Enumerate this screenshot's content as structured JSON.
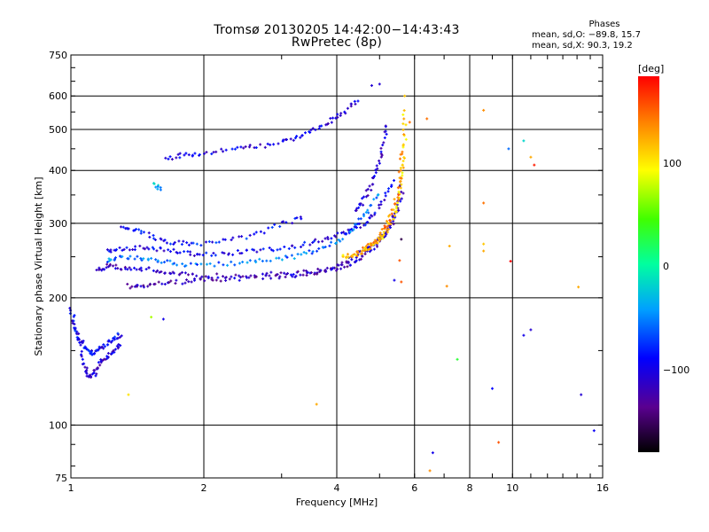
{
  "title": {
    "line1": "Tromsø 20130205 14:42:00−14:43:43",
    "line2": "RwPretec (8p)"
  },
  "phase_stats": {
    "heading": "Phases",
    "o_line": "mean, sd,O: −89.8, 15.7",
    "x_line": "mean, sd,X:  90.3, 19.2"
  },
  "colorbar": {
    "unit_label": "[deg]",
    "ticks": [
      "100",
      "0",
      "−100"
    ],
    "range": [
      -180,
      180
    ]
  },
  "chart_data": {
    "type": "scatter",
    "title": "Tromsø 20130205 14:42:00−14:43:43",
    "subtitle": "RwPretec (8p)",
    "xlabel": "Frequency [MHz]",
    "ylabel": "Stationary phase Virtual Height [km]",
    "xscale": "log",
    "yscale": "log",
    "xlim": [
      1,
      16
    ],
    "ylim": [
      75,
      750
    ],
    "xticks": [
      1,
      2,
      4,
      6,
      8,
      10,
      16
    ],
    "xtick_labels": [
      "1",
      "2",
      "4",
      "6",
      "8",
      "10",
      "16"
    ],
    "yticks": [
      75,
      100,
      200,
      300,
      400,
      500,
      600,
      750
    ],
    "ytick_labels": [
      "75",
      "100",
      "200",
      "300",
      "400",
      "500",
      "600",
      "750"
    ],
    "grid": true,
    "color_metric": "phase [deg]",
    "traces": [
      {
        "x": [
          1.02,
          1.05,
          1.08,
          1.1,
          1.13,
          1.16,
          1.2,
          1.25,
          1.3
        ],
        "y": [
          178,
          150,
          135,
          130,
          132,
          140,
          145,
          150,
          155
        ],
        "phase": -110
      },
      {
        "x": [
          1.0,
          1.02,
          1.05,
          1.08,
          1.12,
          1.15,
          1.2,
          1.25,
          1.3
        ],
        "y": [
          190,
          170,
          158,
          152,
          148,
          150,
          155,
          160,
          165
        ],
        "phase": -95
      },
      {
        "x": [
          1.15,
          1.2,
          1.3,
          1.4,
          1.55,
          1.7,
          1.9,
          2.2,
          2.6,
          3.0,
          3.4,
          3.8,
          4.1,
          4.4,
          4.7,
          5.0,
          5.3,
          5.5,
          5.65
        ],
        "y": [
          230,
          238,
          236,
          235,
          232,
          228,
          226,
          225,
          226,
          228,
          230,
          233,
          240,
          250,
          262,
          278,
          295,
          320,
          360
        ],
        "phase": -115
      },
      {
        "x": [
          1.35,
          1.45,
          1.6,
          1.8,
          2.0,
          2.3,
          2.7,
          3.1,
          3.5,
          3.9,
          4.3,
          4.6,
          4.9,
          5.2,
          5.45,
          5.6
        ],
        "y": [
          213,
          214,
          216,
          218,
          220,
          222,
          223,
          225,
          228,
          233,
          240,
          252,
          265,
          285,
          320,
          380
        ],
        "phase": -120
      },
      {
        "x": [
          1.2,
          1.3,
          1.45,
          1.6,
          1.8,
          2.0,
          2.3,
          2.6,
          3.0,
          3.4,
          3.8,
          4.2,
          4.5,
          4.8,
          5.1,
          5.4
        ],
        "y": [
          258,
          262,
          262,
          260,
          256,
          252,
          255,
          258,
          262,
          268,
          275,
          285,
          295,
          310,
          340,
          380
        ],
        "phase": -100
      },
      {
        "x": [
          1.2,
          1.3,
          1.45,
          1.6,
          1.8,
          2.1,
          2.5,
          2.9,
          3.3,
          3.7,
          4.1,
          4.4,
          4.7,
          5.0
        ],
        "y": [
          245,
          250,
          248,
          244,
          240,
          240,
          242,
          246,
          252,
          262,
          275,
          295,
          320,
          360
        ],
        "phase": -60
      },
      {
        "x": [
          1.3,
          1.4,
          1.55,
          1.7,
          1.9,
          2.2,
          2.6,
          3.0,
          3.4
        ],
        "y": [
          295,
          290,
          278,
          270,
          268,
          272,
          280,
          300,
          310
        ],
        "phase": -90
      },
      {
        "x": [
          1.65,
          1.8,
          2.0,
          2.3,
          2.6,
          3.0,
          3.3,
          3.6,
          3.9,
          4.2,
          4.5
        ],
        "y": [
          425,
          435,
          440,
          448,
          455,
          465,
          480,
          500,
          525,
          555,
          590
        ],
        "phase": -105
      },
      {
        "x": [
          4.1,
          4.3,
          4.5,
          4.7,
          4.9,
          5.1,
          5.3,
          5.5,
          5.6,
          5.65,
          5.7,
          5.7
        ],
        "y": [
          250,
          252,
          255,
          262,
          270,
          282,
          300,
          330,
          370,
          420,
          480,
          560
        ],
        "phase": 110
      },
      {
        "x": [
          4.6,
          4.8,
          5.0,
          5.2,
          5.4,
          5.55,
          5.65
        ],
        "y": [
          260,
          268,
          280,
          300,
          330,
          380,
          450
        ],
        "phase": 130
      },
      {
        "x": [
          4.4,
          4.6,
          4.8,
          4.95,
          5.1,
          5.2
        ],
        "y": [
          320,
          340,
          370,
          410,
          460,
          520
        ],
        "phase": -110
      },
      {
        "x": [
          1.55,
          1.6
        ],
        "y": [
          370,
          360
        ],
        "phase": -40
      }
    ],
    "points": [
      {
        "x": 1.52,
        "y": 180,
        "phase": 70
      },
      {
        "x": 1.62,
        "y": 178,
        "phase": -100
      },
      {
        "x": 1.35,
        "y": 118,
        "phase": 100
      },
      {
        "x": 3.6,
        "y": 112,
        "phase": 120
      },
      {
        "x": 5.85,
        "y": 520,
        "phase": 140
      },
      {
        "x": 5.6,
        "y": 275,
        "phase": -160
      },
      {
        "x": 5.55,
        "y": 245,
        "phase": 150
      },
      {
        "x": 6.4,
        "y": 530,
        "phase": 140
      },
      {
        "x": 6.6,
        "y": 86,
        "phase": -100
      },
      {
        "x": 6.5,
        "y": 78,
        "phase": 130
      },
      {
        "x": 7.2,
        "y": 265,
        "phase": 120
      },
      {
        "x": 7.5,
        "y": 143,
        "phase": 30
      },
      {
        "x": 7.1,
        "y": 213,
        "phase": 130
      },
      {
        "x": 8.6,
        "y": 555,
        "phase": 130
      },
      {
        "x": 8.6,
        "y": 335,
        "phase": 140
      },
      {
        "x": 8.6,
        "y": 268,
        "phase": 110
      },
      {
        "x": 8.6,
        "y": 258,
        "phase": 120
      },
      {
        "x": 9.0,
        "y": 122,
        "phase": -90
      },
      {
        "x": 9.3,
        "y": 91,
        "phase": 150
      },
      {
        "x": 9.8,
        "y": 450,
        "phase": -60
      },
      {
        "x": 9.9,
        "y": 244,
        "phase": 180
      },
      {
        "x": 10.6,
        "y": 470,
        "phase": -20
      },
      {
        "x": 11.0,
        "y": 430,
        "phase": 120
      },
      {
        "x": 11.2,
        "y": 412,
        "phase": 170
      },
      {
        "x": 11.0,
        "y": 168,
        "phase": -110
      },
      {
        "x": 10.6,
        "y": 163,
        "phase": -100
      },
      {
        "x": 14.1,
        "y": 212,
        "phase": 120
      },
      {
        "x": 14.3,
        "y": 118,
        "phase": -110
      },
      {
        "x": 15.3,
        "y": 97,
        "phase": -95
      },
      {
        "x": 5.4,
        "y": 220,
        "phase": -100
      },
      {
        "x": 5.6,
        "y": 218,
        "phase": 150
      },
      {
        "x": 5.7,
        "y": 600,
        "phase": 110
      },
      {
        "x": 5.0,
        "y": 640,
        "phase": -110
      },
      {
        "x": 4.8,
        "y": 635,
        "phase": -110
      }
    ]
  }
}
